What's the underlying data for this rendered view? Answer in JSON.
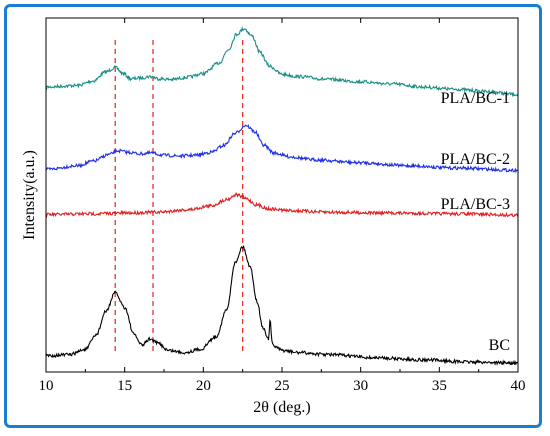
{
  "chart_data": {
    "type": "line",
    "xlabel": "2θ (deg.)",
    "ylabel": "Intensity(a.u.)",
    "xlim": [
      10,
      40
    ],
    "xticks": [
      "10",
      "15",
      "20",
      "25",
      "30",
      "35",
      "40"
    ],
    "yticks": [],
    "grid": false,
    "reference_lines": [
      {
        "x": 14.4,
        "color": "#e8332a",
        "style": "dashed"
      },
      {
        "x": 16.8,
        "color": "#e8332a",
        "style": "dashed"
      },
      {
        "x": 22.5,
        "color": "#e8332a",
        "style": "dashed"
      }
    ],
    "series": [
      {
        "name": "PLA/BC-1",
        "color": "#1a8f86",
        "x": [
          10,
          12,
          13,
          13.8,
          14.4,
          14.9,
          15.4,
          16,
          16.6,
          17.2,
          18,
          19,
          20,
          21,
          21.6,
          22.1,
          22.6,
          23.1,
          23.6,
          24.2,
          25,
          26,
          28,
          30,
          32,
          34,
          36,
          38,
          40
        ],
        "values": [
          0.8,
          0.9,
          1.2,
          1.8,
          2.1,
          1.7,
          1.35,
          1.4,
          1.5,
          1.35,
          1.3,
          1.45,
          1.7,
          2.4,
          3.3,
          4.3,
          4.7,
          4.2,
          3.1,
          2.2,
          1.65,
          1.5,
          1.3,
          1.15,
          1.0,
          0.8,
          0.65,
          0.5,
          0.3
        ]
      },
      {
        "name": "PLA/BC-2",
        "color": "#1f2fe0",
        "x": [
          10,
          12,
          13,
          14,
          14.6,
          15.2,
          16,
          16.7,
          17.5,
          18.5,
          19.5,
          20.5,
          21.3,
          22,
          22.7,
          23.3,
          23.8,
          24.5,
          25.5,
          27,
          30,
          33,
          36,
          40
        ],
        "values": [
          0.3,
          0.55,
          0.85,
          1.3,
          1.55,
          1.45,
          1.35,
          1.4,
          1.25,
          1.2,
          1.25,
          1.45,
          1.9,
          2.7,
          3.25,
          2.8,
          1.95,
          1.4,
          1.15,
          0.95,
          0.75,
          0.55,
          0.4,
          0.25
        ]
      },
      {
        "name": "PLA/BC-3",
        "color": "#e02020",
        "x": [
          10,
          13,
          15,
          17,
          19,
          20.5,
          21.5,
          22.1,
          22.7,
          23.4,
          24.2,
          25.5,
          28,
          32,
          36,
          40
        ],
        "values": [
          0.15,
          0.2,
          0.25,
          0.3,
          0.45,
          0.7,
          1.1,
          1.4,
          1.15,
          0.75,
          0.5,
          0.4,
          0.3,
          0.25,
          0.2,
          0.12
        ]
      },
      {
        "name": "BC",
        "color": "#000000",
        "x": [
          10,
          11.5,
          12.5,
          13.2,
          13.8,
          14.4,
          15,
          15.6,
          16.1,
          16.6,
          17.1,
          17.8,
          18.8,
          19.8,
          20.8,
          21.5,
          22,
          22.5,
          23,
          23.4,
          23.8,
          24.15,
          24.25,
          24.35,
          24.5,
          25,
          26,
          28,
          31,
          34,
          37,
          40
        ],
        "values": [
          0.3,
          0.35,
          0.6,
          1.3,
          2.4,
          3.3,
          2.6,
          1.3,
          0.8,
          1.1,
          0.9,
          0.55,
          0.45,
          0.6,
          1.2,
          2.5,
          4.7,
          5.5,
          4.5,
          2.9,
          1.6,
          1.1,
          2.1,
          0.95,
          0.75,
          0.55,
          0.45,
          0.35,
          0.2,
          0.1,
          0.0,
          -0.05
        ]
      }
    ]
  }
}
